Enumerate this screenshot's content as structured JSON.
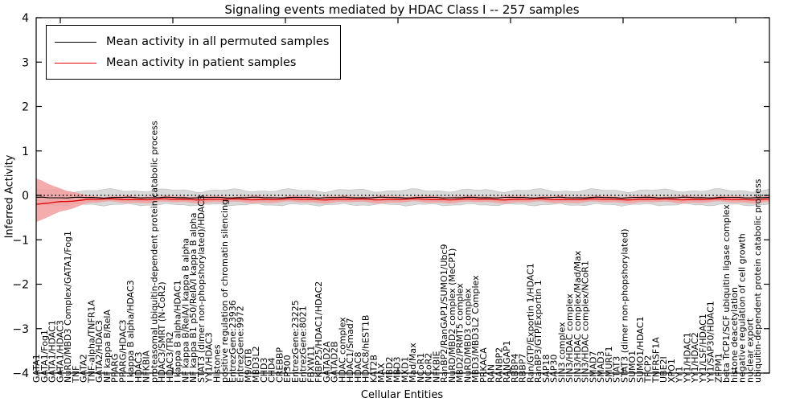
{
  "title": "Signaling events mediated by HDAC Class I -- 257 samples",
  "samples_count": "257",
  "axes": {
    "xlabel": "Cellular Entities",
    "ylabel": "Inferred Activity",
    "yticks": [
      "4",
      "3",
      "2",
      "1",
      "0",
      "−1",
      "−2",
      "−3",
      "−4"
    ],
    "ylim": [
      -4,
      4
    ]
  },
  "legend": {
    "items": [
      {
        "label": "Mean activity in all permuted samples",
        "color": "#000000"
      },
      {
        "label": "Mean activity in patient samples",
        "color": "#e00000"
      }
    ]
  },
  "chart_data": {
    "type": "line",
    "title": "Signaling events mediated by HDAC Class I -- 257 samples",
    "xlabel": "Cellular Entities",
    "ylabel": "Inferred Activity",
    "ylim": [
      -4,
      4
    ],
    "grid": false,
    "legend_position": "upper left",
    "series": [
      {
        "name": "Mean activity in all permuted samples",
        "color": "#000000",
        "mean": -0.05,
        "band_halfwidth": 0.16,
        "band_color": "#cccccc"
      },
      {
        "name": "Mean activity in patient samples",
        "color": "#e00000",
        "mean": -0.09,
        "band_halfwidth": 0.07,
        "band_color": "#f29e9e",
        "left_edge_band_top": 0.3,
        "left_edge_band_bottom": -0.55
      }
    ],
    "zero_line": {
      "value": 0,
      "style": "dotted",
      "color": "#000000"
    },
    "categories": [
      "GATA1",
      "GATA1/Fog1",
      "GATA1/HDAC1",
      "GATA1/HDAC3",
      "NuRD/MBD3 Complex/GATA1/Fog1",
      "TNF",
      "GATA2",
      "TNF-alpha/TNFR1A",
      "GATA2/HDAC3",
      "NF kappa B/RelA",
      "PPARG",
      "PPARG/HDAC3",
      "I kappa B alpha/HDAC3",
      "HDAC3",
      "NFKBIA",
      "proteasomal ubiquitin-dependent protein catabolic process",
      "HDAC3/SMRT (N-CoR2)",
      "HDAC3/TR2",
      "I kappa B alpha/HDAC1",
      "NF kappa B/RelA/I kappa B alpha",
      "NF kappa B1 p50/RelA/I kappa B alpha",
      "STAT3 (dimer non-phopshorylated)/HDAC3",
      "YY1/HDAC3",
      "Histones",
      "positive regulation of chromatin silencing",
      "EntrezGene:23936",
      "EntrezGene:9972",
      "M9/GTB",
      "MBD3L2",
      "CHD3",
      "CHD4",
      "CREBBP",
      "EP300",
      "EntrezGene:23225",
      "EntrezGene:8021",
      "FBXW11",
      "FKBP25/HDAC1/HDAC2",
      "GATAD2A",
      "GATAD2B",
      "HDAC complex",
      "HDAC1/Smad7",
      "HDAC8",
      "HDAC8/hEST1B",
      "KAT2B",
      "MAX",
      "MBD2",
      "MBD3",
      "MXD1",
      "Mad/Max",
      "NCoR1",
      "NCoR2",
      "NFKBIE",
      "RanBP2/RanGAP1/SUMO1/Ubc9",
      "NuRD/MBD2 complex (MeCP1)",
      "MBD2/PRMT5 complex",
      "NuRD/MBD3 complex",
      "MBD3/MBD3L2 Complex",
      "PRKACA",
      "RAN",
      "RANBP2",
      "RANGAP1",
      "RBBP4",
      "RBBP7",
      "Ran/GTP/Exportin 1/HDAC1",
      "RanBP3/GTP/Exportin 1",
      "SAP18",
      "SAP30",
      "SIN3 complex",
      "SIN3/HDAC complex",
      "SIN3/HDAC complex/Mad/Max",
      "SIN3/HDAC complex/NCoR1",
      "SMAD7",
      "SMAD3",
      "SMURF1",
      "STAT3",
      "STAT3 (dimer non-phopshorylated)",
      "SUMO1",
      "SUMO1/HDAC1",
      "TFCP2",
      "TNFRSF1A",
      "UBE2I",
      "XPO1",
      "YY1",
      "YY1/HDAC1",
      "YY1/HDAC2",
      "YY1/LSF/HDAC1",
      "YY1/SAP30/HDAC1",
      "ZFPM1",
      "beta TrCP1/SCF ubiquitin ligase complex",
      "histone deacetylation",
      "negative regulation of cell growth",
      "nuclear export",
      "ubiquitin-dependent protein catabolic process"
    ]
  }
}
